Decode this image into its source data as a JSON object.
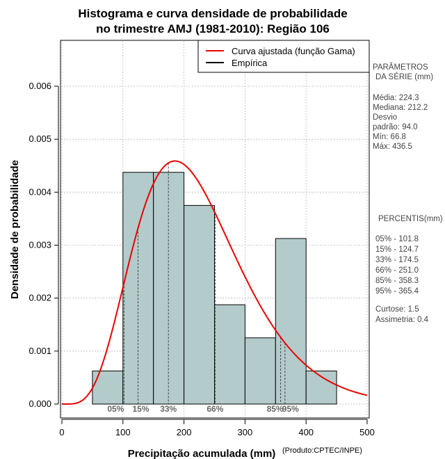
{
  "chart_data": {
    "type": "bar",
    "title_lines": [
      "Histograma e curva densidade de probabilidade",
      "no trimestre AMJ (1981-2010): Região 106"
    ],
    "xlabel": "Precipitação acumulada (mm)",
    "ylabel": "Densidade de probabilidade",
    "credit": "(Produto:CPTEC/INPE)",
    "xlim": [
      0,
      500
    ],
    "ylim": [
      0,
      0.0066
    ],
    "x_ticks": [
      0,
      100,
      200,
      300,
      400,
      500
    ],
    "x_tick_labels": [
      "0",
      "100",
      "200",
      "300",
      "400",
      "500"
    ],
    "y_ticks": [
      0,
      0.001,
      0.002,
      0.003,
      0.004,
      0.005,
      0.006
    ],
    "y_tick_labels": [
      "0.000",
      "0.001",
      "0.002",
      "0.003",
      "0.004",
      "0.005",
      "0.006"
    ],
    "grid": true,
    "histogram": {
      "bins": [
        [
          50,
          100
        ],
        [
          100,
          150
        ],
        [
          150,
          200
        ],
        [
          200,
          250
        ],
        [
          250,
          300
        ],
        [
          300,
          350
        ],
        [
          350,
          400
        ],
        [
          400,
          450
        ]
      ],
      "values": [
        0.000625,
        0.004375,
        0.004375,
        0.00375,
        0.001875,
        0.00125,
        0.003125,
        0.000625
      ],
      "color": "#b4cbcb"
    },
    "fitted_curve": {
      "name": "Curva ajustada (função Gama)",
      "distribution": "gamma",
      "shape": 5.7,
      "scale": 39.4,
      "color": "#ee0000"
    },
    "legend": [
      {
        "label": "Curva ajustada (função Gama)",
        "color": "#ee0000"
      },
      {
        "label": "Empírica",
        "color": "#000000"
      }
    ],
    "legend_position": "top-right",
    "percentile_lines": [
      {
        "value": 101.8,
        "label": "05%"
      },
      {
        "value": 124.7,
        "label": "15%"
      },
      {
        "value": 174.5,
        "label": "33%"
      },
      {
        "value": 251.0,
        "label": "66%"
      },
      {
        "value": 358.3,
        "label": "85%"
      },
      {
        "value": 365.4,
        "label": "95%"
      }
    ],
    "percentile_axis_labels": [
      "05%",
      "15%",
      "33%",
      "66%",
      "85%",
      "95%"
    ]
  },
  "side_panel": {
    "params_title": [
      "PARÂMETROS",
      "DA SÉRIE (mm)"
    ],
    "params": [
      "Média:  224.3",
      "Mediana:  212.2",
      "Desvio",
      "padrão:  94.0",
      "Mín:  66.8",
      "Máx:  436.5"
    ],
    "percentis_title": "PERCENTIS(mm)",
    "percentis": [
      "05% -   101.8",
      "15% -   124.7",
      "33% -   174.5",
      "66% -   251.0",
      "85% -   358.3",
      "95% -   365.4"
    ],
    "curtose": "Curtose:  1.5",
    "assimetria": "Assimetria:  0.4"
  }
}
